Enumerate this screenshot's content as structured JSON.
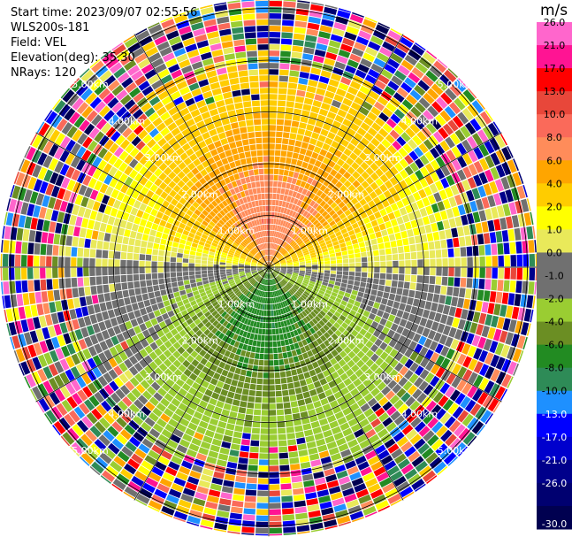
{
  "header": {
    "start_time": "Start time: 2023/09/07 02:55:56",
    "instrument": "WLS200s-181",
    "field": "Field: VEL",
    "elevation": "Elevation(deg): 35.30",
    "nrays": "NRays: 120"
  },
  "chart_data": {
    "type": "heatmap",
    "projection": "polar",
    "field": "VEL",
    "nrays": 120,
    "max_range_km": 5.2,
    "rings": [
      {
        "range_km": 1.0,
        "label": "1.00km"
      },
      {
        "range_km": 2.0,
        "label": "2.00km"
      },
      {
        "range_km": 3.0,
        "label": "3.00km"
      },
      {
        "range_km": 4.0,
        "label": "4.00km"
      },
      {
        "range_km": 5.0,
        "label": "5.00km"
      }
    ],
    "spokes_deg": [
      0,
      30,
      60,
      90,
      120,
      150,
      180,
      210,
      240,
      270,
      300,
      330
    ],
    "colorbar": {
      "unit": "m/s",
      "levels": [
        26.0,
        21.0,
        17.0,
        13.0,
        10.0,
        8.0,
        6.0,
        4.0,
        2.0,
        1.0,
        0.0,
        -1.0,
        -2.0,
        -4.0,
        -6.0,
        -8.0,
        -10.0,
        -13.0,
        -17.0,
        -21.0,
        -26.0,
        -30.0
      ],
      "labels": [
        "26.0",
        "21.0",
        "17.0",
        "13.0",
        "10.0",
        "8.0",
        "6.0",
        "4.0",
        "2.0",
        "1.0",
        "0.0",
        "-1.0",
        "-2.0",
        "-4.0",
        "-6.0",
        "-8.0",
        "-10.0",
        "-13.0",
        "-17.0",
        "-21.0",
        "-26.0",
        "-30.0"
      ],
      "colors": [
        "#ff66cc",
        "#ff1493",
        "#ff0000",
        "#e8473a",
        "#fa6a5a",
        "#ff8c5a",
        "#ffa500",
        "#ffcc00",
        "#ffff00",
        "#e9e95a",
        "#707070",
        "#707070",
        "#9acd32",
        "#6b8e23",
        "#228b22",
        "#2e8b57",
        "#1e90ff",
        "#0000ff",
        "#0000cd",
        "#00008b",
        "#000070",
        "#000050"
      ],
      "label_colors": [
        "#000000",
        "#000000",
        "#000000",
        "#000000",
        "#000000",
        "#000000",
        "#000000",
        "#000000",
        "#000000",
        "#000000",
        "#000000",
        "#000000",
        "#000000",
        "#000000",
        "#000000",
        "#000000",
        "#000000",
        "#ffffff",
        "#ffffff",
        "#ffffff",
        "#ffffff",
        "#ffffff"
      ]
    },
    "velocity_model": {
      "wind_toward_deg": 180,
      "max_mps": 7.5,
      "peak_range_km": 1.0,
      "noise_start_km": 3.8
    }
  }
}
